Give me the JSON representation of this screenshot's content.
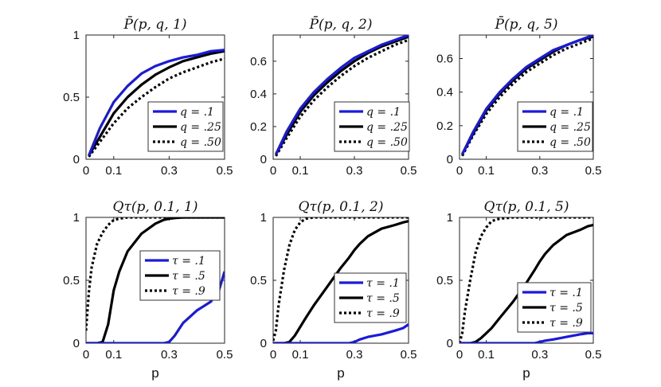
{
  "chart_data": [
    {
      "type": "line",
      "title": "P̄(p, q, 1)",
      "xlabel": "",
      "ylabel": "",
      "xlim": [
        0,
        0.5
      ],
      "ylim": [
        0,
        1
      ],
      "xticks": [
        0,
        0.1,
        0.3,
        0.5
      ],
      "xtick_labels": [
        "0",
        "0.1",
        "0.3",
        "0.5"
      ],
      "yticks": [
        0,
        0.5,
        1
      ],
      "ytick_labels": [
        "0",
        "0.5",
        "1"
      ],
      "legend_position": "bottom-right",
      "x": [
        0.01,
        0.05,
        0.1,
        0.15,
        0.2,
        0.25,
        0.3,
        0.35,
        0.4,
        0.45,
        0.5
      ],
      "series": [
        {
          "name": "q = .1",
          "label_var": "q",
          "label_val": ".1",
          "color": "#1a1adb",
          "style": "solid",
          "values": [
            0.03,
            0.25,
            0.46,
            0.59,
            0.69,
            0.75,
            0.79,
            0.82,
            0.84,
            0.87,
            0.88
          ]
        },
        {
          "name": "q = .25",
          "label_var": "q",
          "label_val": ".25",
          "color": "#000000",
          "style": "solid",
          "values": [
            0.03,
            0.18,
            0.37,
            0.5,
            0.6,
            0.68,
            0.74,
            0.79,
            0.82,
            0.85,
            0.87
          ]
        },
        {
          "name": "q = .50",
          "label_var": "q",
          "label_val": ".50",
          "color": "#000000",
          "style": "dotted",
          "values": [
            0.02,
            0.14,
            0.29,
            0.41,
            0.5,
            0.58,
            0.65,
            0.7,
            0.74,
            0.78,
            0.81
          ]
        }
      ]
    },
    {
      "type": "line",
      "title": "P̄(p, q, 2)",
      "xlabel": "",
      "ylabel": "",
      "xlim": [
        0,
        0.5
      ],
      "ylim": [
        0,
        0.76
      ],
      "xticks": [
        0,
        0.1,
        0.3,
        0.5
      ],
      "xtick_labels": [
        "0",
        "0.1",
        "0.3",
        "0.5"
      ],
      "yticks": [
        0,
        0.2,
        0.4,
        0.6
      ],
      "ytick_labels": [
        "0",
        "0.2",
        "0.4",
        "0.6"
      ],
      "legend_position": "bottom-right",
      "x": [
        0.01,
        0.05,
        0.1,
        0.15,
        0.2,
        0.25,
        0.3,
        0.35,
        0.4,
        0.45,
        0.5
      ],
      "series": [
        {
          "name": "q = .1",
          "label_var": "q",
          "label_val": ".1",
          "color": "#1a1adb",
          "style": "solid",
          "values": [
            0.03,
            0.17,
            0.31,
            0.41,
            0.49,
            0.56,
            0.62,
            0.66,
            0.7,
            0.73,
            0.76
          ]
        },
        {
          "name": "q = .25",
          "label_var": "q",
          "label_val": ".25",
          "color": "#000000",
          "style": "solid",
          "values": [
            0.03,
            0.15,
            0.29,
            0.39,
            0.47,
            0.54,
            0.6,
            0.65,
            0.69,
            0.72,
            0.75
          ]
        },
        {
          "name": "q = .50",
          "label_var": "q",
          "label_val": ".50",
          "color": "#000000",
          "style": "dotted",
          "values": [
            0.02,
            0.13,
            0.26,
            0.36,
            0.44,
            0.51,
            0.57,
            0.62,
            0.66,
            0.7,
            0.73
          ]
        }
      ]
    },
    {
      "type": "line",
      "title": "P̄(p, q, 5)",
      "xlabel": "",
      "ylabel": "",
      "xlim": [
        0,
        0.5
      ],
      "ylim": [
        0,
        0.74
      ],
      "xticks": [
        0,
        0.1,
        0.3,
        0.5
      ],
      "xtick_labels": [
        "0",
        "0.1",
        "0.3",
        "0.5"
      ],
      "yticks": [
        0,
        0.2,
        0.4,
        0.6
      ],
      "ytick_labels": [
        "0",
        "0.2",
        "0.4",
        "0.6"
      ],
      "legend_position": "bottom-right",
      "x": [
        0.01,
        0.05,
        0.1,
        0.15,
        0.2,
        0.25,
        0.3,
        0.35,
        0.4,
        0.45,
        0.5
      ],
      "series": [
        {
          "name": "q = .1",
          "label_var": "q",
          "label_val": ".1",
          "color": "#1a1adb",
          "style": "solid",
          "values": [
            0.03,
            0.16,
            0.3,
            0.4,
            0.48,
            0.55,
            0.6,
            0.65,
            0.68,
            0.71,
            0.74
          ]
        },
        {
          "name": "q = .25",
          "label_var": "q",
          "label_val": ".25",
          "color": "#000000",
          "style": "solid",
          "values": [
            0.03,
            0.15,
            0.29,
            0.39,
            0.47,
            0.54,
            0.59,
            0.64,
            0.68,
            0.71,
            0.73
          ]
        },
        {
          "name": "q = .50",
          "label_var": "q",
          "label_val": ".50",
          "color": "#000000",
          "style": "dotted",
          "values": [
            0.02,
            0.14,
            0.27,
            0.37,
            0.45,
            0.52,
            0.57,
            0.62,
            0.66,
            0.69,
            0.72
          ]
        }
      ]
    },
    {
      "type": "line",
      "title": "Qτ(p, 0.1, 1)",
      "xlabel": "p",
      "ylabel": "",
      "xlim": [
        0,
        0.5
      ],
      "ylim": [
        0,
        1
      ],
      "xticks": [
        0,
        0.1,
        0.3,
        0.5
      ],
      "xtick_labels": [
        "0",
        "0.1",
        "0.3",
        "0.5"
      ],
      "yticks": [
        0,
        0.5,
        1
      ],
      "ytick_labels": [
        "0",
        "0.5",
        "1"
      ],
      "legend_position": "center-right",
      "x": [
        0.0,
        0.01,
        0.02,
        0.04,
        0.06,
        0.08,
        0.1,
        0.12,
        0.15,
        0.2,
        0.25,
        0.28,
        0.3,
        0.32,
        0.35,
        0.4,
        0.45,
        0.48,
        0.5
      ],
      "series": [
        {
          "name": "τ = .1",
          "label_var": "τ",
          "label_val": ".1",
          "color": "#1a1adb",
          "style": "solid",
          "values": [
            0,
            0,
            0,
            0,
            0,
            0,
            0,
            0,
            0,
            0,
            0,
            0,
            0.01,
            0.06,
            0.16,
            0.26,
            0.33,
            0.42,
            0.57
          ]
        },
        {
          "name": "τ = .5",
          "label_var": "τ",
          "label_val": ".5",
          "color": "#000000",
          "style": "solid",
          "values": [
            0,
            0,
            0,
            0,
            0.01,
            0.15,
            0.42,
            0.57,
            0.73,
            0.87,
            0.95,
            0.98,
            0.99,
            0.995,
            1,
            1,
            1,
            1,
            1
          ]
        },
        {
          "name": "τ = .9",
          "label_var": "τ",
          "label_val": ".9",
          "color": "#000000",
          "style": "dotted",
          "values": [
            0.1,
            0.4,
            0.6,
            0.79,
            0.88,
            0.94,
            0.98,
            0.99,
            1,
            1,
            1,
            1,
            1,
            1,
            1,
            1,
            1,
            1,
            1
          ]
        }
      ]
    },
    {
      "type": "line",
      "title": "Qτ(p, 0.1, 2)",
      "xlabel": "p",
      "ylabel": "",
      "xlim": [
        0,
        0.5
      ],
      "ylim": [
        0,
        1
      ],
      "xticks": [
        0,
        0.1,
        0.3,
        0.5
      ],
      "xtick_labels": [
        "0",
        "0.1",
        "0.3",
        "0.5"
      ],
      "yticks": [
        0,
        0.5,
        1
      ],
      "ytick_labels": [
        "0",
        "0.5",
        "1"
      ],
      "legend_position": "bottom-right",
      "x": [
        0.0,
        0.01,
        0.02,
        0.04,
        0.06,
        0.08,
        0.1,
        0.12,
        0.15,
        0.2,
        0.25,
        0.28,
        0.3,
        0.32,
        0.35,
        0.4,
        0.45,
        0.48,
        0.5
      ],
      "series": [
        {
          "name": "τ = .1",
          "label_var": "τ",
          "label_val": ".1",
          "color": "#1a1adb",
          "style": "solid",
          "values": [
            0,
            0,
            0,
            0,
            0,
            0,
            0,
            0,
            0,
            0,
            0,
            0,
            0.01,
            0.03,
            0.05,
            0.07,
            0.1,
            0.12,
            0.15
          ]
        },
        {
          "name": "τ = .5",
          "label_var": "τ",
          "label_val": ".5",
          "color": "#000000",
          "style": "solid",
          "values": [
            0,
            0,
            0,
            0,
            0.01,
            0.06,
            0.13,
            0.2,
            0.3,
            0.45,
            0.6,
            0.68,
            0.74,
            0.79,
            0.85,
            0.91,
            0.94,
            0.96,
            0.97
          ]
        },
        {
          "name": "τ = .9",
          "label_var": "τ",
          "label_val": ".9",
          "color": "#000000",
          "style": "dotted",
          "values": [
            0.02,
            0.1,
            0.3,
            0.58,
            0.78,
            0.9,
            0.96,
            0.99,
            1,
            1,
            1,
            1,
            1,
            1,
            1,
            1,
            1,
            1,
            1
          ]
        }
      ]
    },
    {
      "type": "line",
      "title": "Qτ(p, 0.1, 5)",
      "xlabel": "p",
      "ylabel": "",
      "xlim": [
        0,
        0.5
      ],
      "ylim": [
        0,
        1
      ],
      "xticks": [
        0,
        0.1,
        0.3,
        0.5
      ],
      "xtick_labels": [
        "0",
        "0.1",
        "0.3",
        "0.5"
      ],
      "yticks": [
        0,
        0.5,
        1
      ],
      "ytick_labels": [
        "0",
        "0.5",
        "1"
      ],
      "legend_position": "bottom-right",
      "x": [
        0.0,
        0.01,
        0.02,
        0.04,
        0.06,
        0.08,
        0.1,
        0.12,
        0.15,
        0.2,
        0.25,
        0.28,
        0.3,
        0.32,
        0.35,
        0.4,
        0.45,
        0.48,
        0.5
      ],
      "series": [
        {
          "name": "τ = .1",
          "label_var": "τ",
          "label_val": ".1",
          "color": "#1a1adb",
          "style": "solid",
          "values": [
            0,
            0,
            0,
            0,
            0,
            0,
            0,
            0,
            0,
            0,
            0,
            0,
            0.01,
            0.02,
            0.03,
            0.05,
            0.07,
            0.08,
            0.08
          ]
        },
        {
          "name": "τ = .5",
          "label_var": "τ",
          "label_val": ".5",
          "color": "#000000",
          "style": "solid",
          "values": [
            0,
            0,
            0,
            0,
            0.01,
            0.04,
            0.08,
            0.12,
            0.2,
            0.33,
            0.48,
            0.58,
            0.65,
            0.71,
            0.78,
            0.86,
            0.9,
            0.93,
            0.94
          ]
        },
        {
          "name": "τ = .9",
          "label_var": "τ",
          "label_val": ".9",
          "color": "#000000",
          "style": "dotted",
          "values": [
            0,
            0.08,
            0.25,
            0.5,
            0.72,
            0.85,
            0.92,
            0.97,
            0.99,
            1,
            1,
            1,
            1,
            1,
            1,
            1,
            1,
            1,
            1
          ]
        }
      ]
    }
  ]
}
